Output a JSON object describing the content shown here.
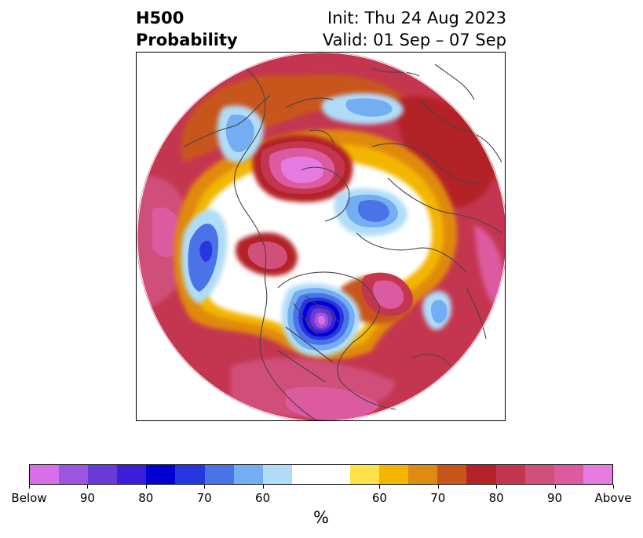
{
  "header": {
    "title_line1": "H500",
    "title_line2": "Probability",
    "init": "Init: Thu 24 Aug 2023",
    "valid": "Valid: 01 Sep – 07 Sep"
  },
  "colorbar": {
    "unit": "%",
    "tick_labels": [
      "Below",
      "90",
      "80",
      "70",
      "60",
      "60",
      "70",
      "80",
      "90",
      "Above"
    ],
    "colors": [
      "#d86fe8",
      "#9b55e0",
      "#6a3ad8",
      "#3c1ed8",
      "#0000d0",
      "#2737e0",
      "#4b73e8",
      "#74aef2",
      "#b0dcf8",
      "#ffffff",
      "#ffe14a",
      "#f3b600",
      "#df8a10",
      "#c8561a",
      "#b32328",
      "#c43650",
      "#d0507a",
      "#dc5aa0",
      "#e57ae0"
    ]
  },
  "map": {
    "projection": "north polar stereographic",
    "coastline_color": "#444444",
    "variable": "500 hPa geopotential height anomaly probability"
  }
}
